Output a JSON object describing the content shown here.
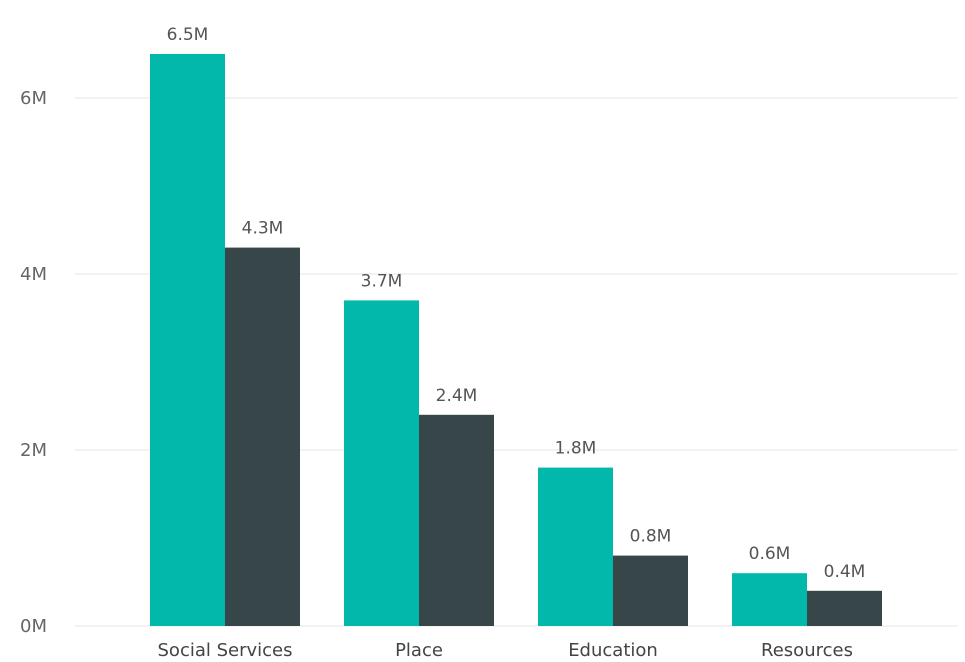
{
  "chart_data": {
    "type": "bar",
    "categories": [
      "Social Services",
      "Place",
      "Education",
      "Resources"
    ],
    "series": [
      {
        "color": "#01b8aa",
        "values": [
          6.5,
          3.7,
          1.8,
          0.6
        ],
        "labels": [
          "6.5M",
          "3.7M",
          "1.8M",
          "0.6M"
        ]
      },
      {
        "color": "#374649",
        "values": [
          4.3,
          2.4,
          0.8,
          0.4
        ],
        "labels": [
          "4.3M",
          "2.4M",
          "0.8M",
          "0.4M"
        ]
      }
    ],
    "y_ticks": [
      {
        "value": 0,
        "label": "0M"
      },
      {
        "value": 2,
        "label": "2M"
      },
      {
        "value": 4,
        "label": "4M"
      },
      {
        "value": 6,
        "label": "6M"
      }
    ],
    "ylim": [
      0,
      6.5
    ],
    "grid": true,
    "title": "",
    "xlabel": "",
    "ylabel": ""
  }
}
